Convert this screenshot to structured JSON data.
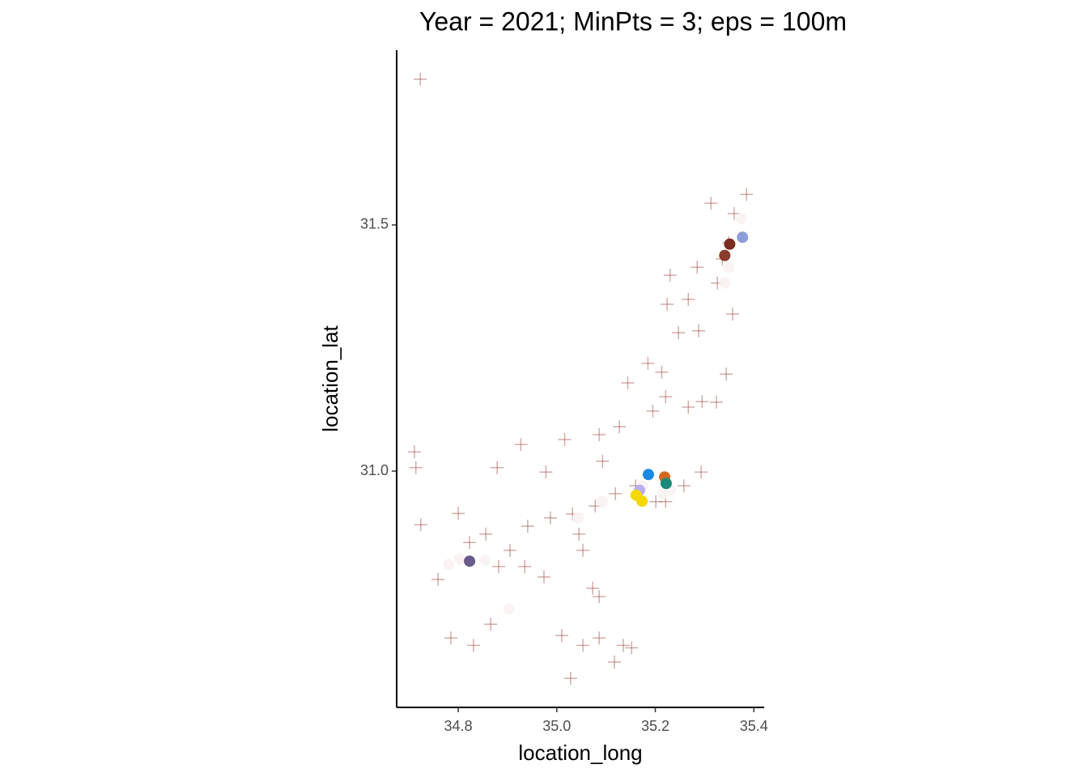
{
  "chart_data": {
    "type": "scatter",
    "title": "Year = 2021; MinPts = 3; eps = 100m",
    "x_label": "location_long",
    "y_label": "location_lat",
    "xlim": [
      34.675,
      35.421
    ],
    "ylim": [
      30.52,
      31.855
    ],
    "xticks": [
      34.8,
      {
        "value": 35,
        "label": "35.0"
      },
      35.2,
      35.4
    ],
    "yticks": [
      {
        "value": 31,
        "label": "31.0"
      },
      31.5
    ],
    "grid": false,
    "series": [
      {
        "color": "#a0453c",
        "shape": "cross",
        "alpha": 0.45,
        "x": [
          34.723,
          34.711,
          34.714,
          34.724,
          34.8,
          34.785,
          34.759,
          34.831,
          34.866,
          34.879,
          34.927,
          34.978,
          35.016,
          35.086,
          35.127,
          35.093,
          35.195,
          35.213,
          35.185,
          35.144,
          35.221,
          35.267,
          35.295,
          35.344,
          35.324,
          35.247,
          35.288,
          35.224,
          35.267,
          35.313,
          35.385,
          35.357,
          35.23,
          35.285,
          35.326,
          35.36,
          35.293,
          35.258,
          35.221,
          35.119,
          35.078,
          35.032,
          34.987,
          34.941,
          34.905,
          34.882,
          34.935,
          34.974,
          35.073,
          35.086,
          35.01,
          35.053,
          35.086,
          35.028,
          35.117,
          35.152,
          35.135,
          34.823,
          34.856,
          35.053,
          35.045,
          35.16,
          35.201,
          35.336,
          35.349
        ],
        "y": [
          31.796,
          31.039,
          31.007,
          30.891,
          30.914,
          30.661,
          30.78,
          30.646,
          30.689,
          31.007,
          31.054,
          30.998,
          31.064,
          31.074,
          31.09,
          31.02,
          31.122,
          31.201,
          31.219,
          31.179,
          31.151,
          31.13,
          31.141,
          31.197,
          31.14,
          31.281,
          31.285,
          31.339,
          31.349,
          31.544,
          31.562,
          31.319,
          31.398,
          31.414,
          31.382,
          31.523,
          30.998,
          30.97,
          30.938,
          30.954,
          30.929,
          30.913,
          30.905,
          30.888,
          30.839,
          30.806,
          30.806,
          30.785,
          30.762,
          30.745,
          30.666,
          30.646,
          30.661,
          30.579,
          30.612,
          30.641,
          30.646,
          30.855,
          30.872,
          30.839,
          30.872,
          30.97,
          30.938,
          31.431,
          31.464
        ]
      },
      {
        "color": "#f8f2f2",
        "shape": "circle",
        "alpha": 0.9,
        "x": [
          34.78,
          34.854,
          34.803,
          34.903,
          35.043,
          35.092,
          35.174,
          35.215,
          35.231,
          35.349,
          35.374,
          35.341
        ],
        "y": [
          30.81,
          30.819,
          30.822,
          30.72,
          30.905,
          30.938,
          30.97,
          30.954,
          30.962,
          31.414,
          31.513,
          31.382
        ]
      },
      {
        "color": "#1e88e5",
        "shape": "circle",
        "alpha": 1,
        "x": [
          35.186
        ],
        "y": [
          30.993
        ]
      },
      {
        "color": "#d2691e",
        "shape": "circle",
        "alpha": 1,
        "x": [
          35.219
        ],
        "y": [
          30.988
        ]
      },
      {
        "color": "#1a8a7a",
        "shape": "circle",
        "alpha": 1,
        "x": [
          35.222
        ],
        "y": [
          30.975
        ]
      },
      {
        "color": "#b8b0ee",
        "shape": "circle",
        "alpha": 1,
        "x": [
          35.168
        ],
        "y": [
          30.961
        ]
      },
      {
        "color": "#f5d800",
        "shape": "circle",
        "alpha": 1,
        "x": [
          35.173,
          35.161
        ],
        "y": [
          30.939,
          30.951
        ]
      },
      {
        "color": "#6b5b8a",
        "shape": "circle",
        "alpha": 1,
        "x": [
          34.823
        ],
        "y": [
          30.817
        ]
      },
      {
        "color": "#7a2e22",
        "shape": "circle",
        "alpha": 1,
        "x": [
          35.351
        ],
        "y": [
          31.461
        ]
      },
      {
        "color": "#8e9ed8",
        "shape": "circle",
        "alpha": 1,
        "x": [
          35.377
        ],
        "y": [
          31.475
        ]
      },
      {
        "color": "#8b3a2e",
        "shape": "circle",
        "alpha": 1,
        "x": [
          35.341
        ],
        "y": [
          31.438
        ]
      }
    ]
  }
}
